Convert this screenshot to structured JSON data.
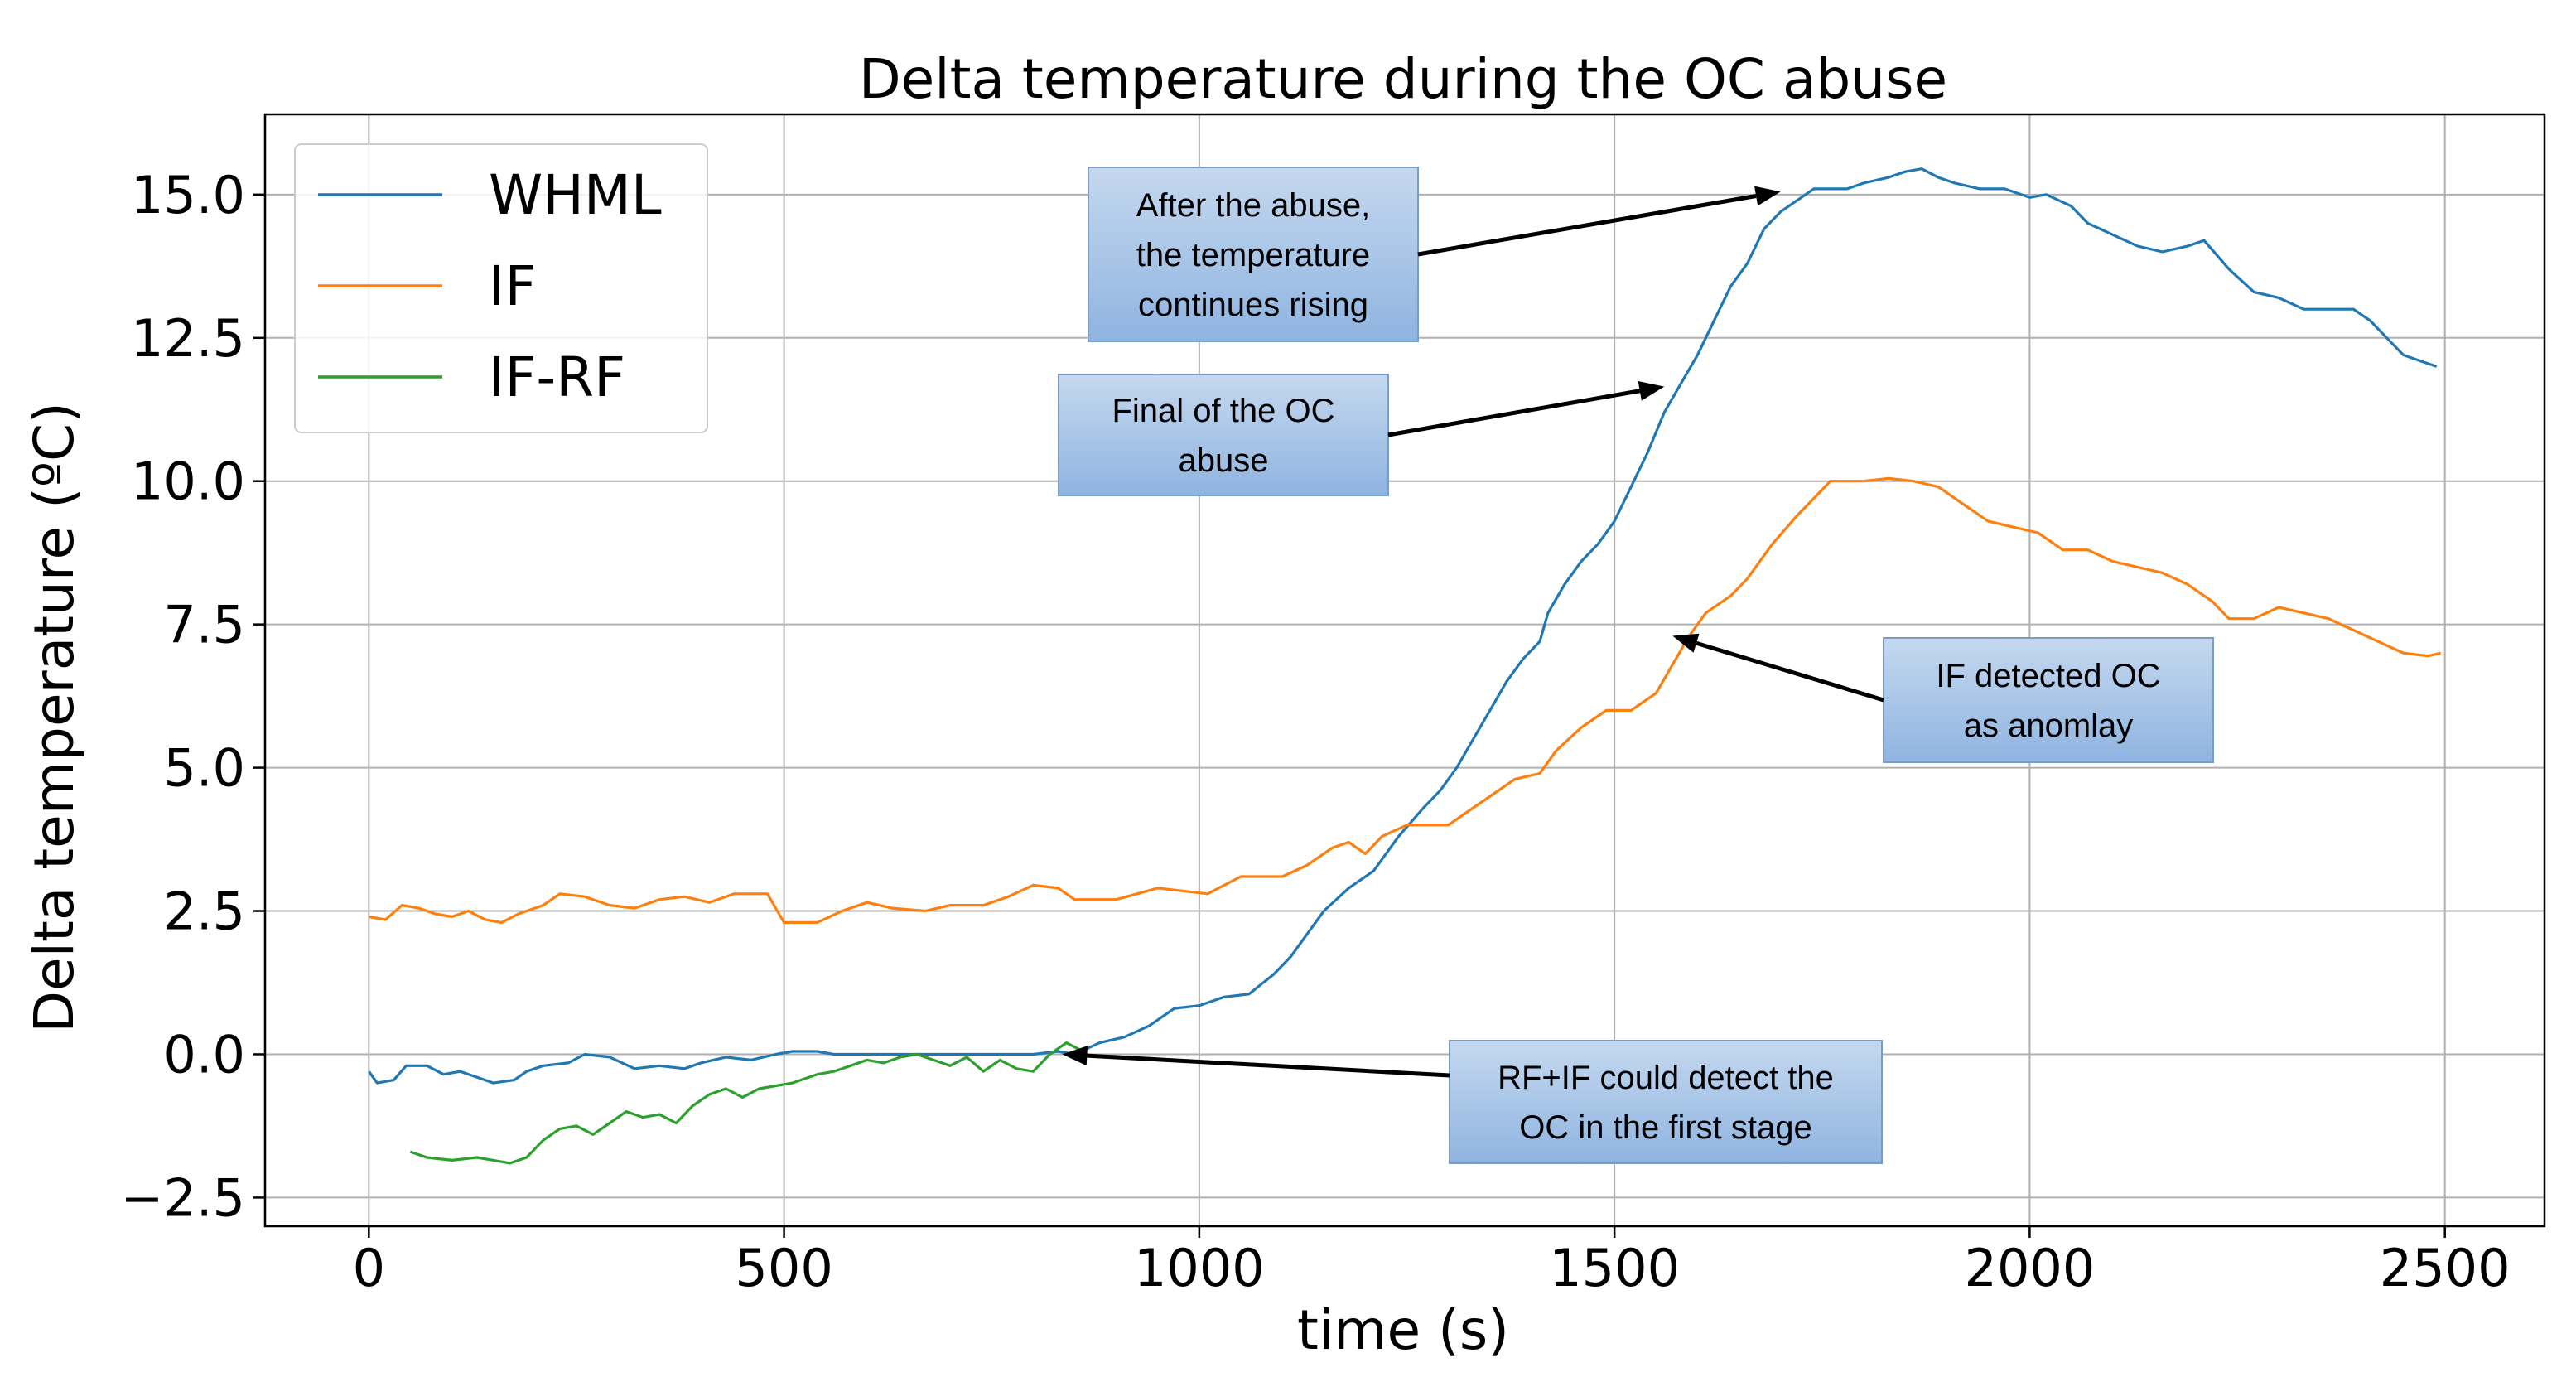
{
  "chart_data": {
    "type": "line",
    "title": "Delta temperature during the OC abuse",
    "xlabel": "time (s)",
    "ylabel": "Delta temperature (ºC)",
    "xlim": [
      -125,
      2620
    ],
    "ylim": [
      -3.0,
      16.4
    ],
    "xticks": [
      0,
      500,
      1000,
      1500,
      2000,
      2500
    ],
    "yticks": [
      -2.5,
      0.0,
      2.5,
      5.0,
      7.5,
      10.0,
      12.5,
      15.0
    ],
    "xtick_labels": [
      "0",
      "500",
      "1000",
      "1500",
      "2000",
      "2500"
    ],
    "ytick_labels": [
      "−2.5",
      "0.0",
      "2.5",
      "5.0",
      "7.5",
      "10.0",
      "12.5",
      "15.0"
    ],
    "grid": true,
    "legend_position": "top-left",
    "series": [
      {
        "name": "WHML",
        "color": "#1f77b4",
        "points": [
          [
            0,
            -0.3
          ],
          [
            10,
            -0.5
          ],
          [
            30,
            -0.45
          ],
          [
            45,
            -0.2
          ],
          [
            70,
            -0.2
          ],
          [
            90,
            -0.35
          ],
          [
            110,
            -0.3
          ],
          [
            130,
            -0.4
          ],
          [
            150,
            -0.5
          ],
          [
            175,
            -0.45
          ],
          [
            190,
            -0.3
          ],
          [
            210,
            -0.2
          ],
          [
            240,
            -0.15
          ],
          [
            260,
            0.0
          ],
          [
            290,
            -0.05
          ],
          [
            320,
            -0.25
          ],
          [
            350,
            -0.2
          ],
          [
            380,
            -0.25
          ],
          [
            400,
            -0.15
          ],
          [
            430,
            -0.05
          ],
          [
            460,
            -0.1
          ],
          [
            490,
            0.0
          ],
          [
            510,
            0.05
          ],
          [
            540,
            0.05
          ],
          [
            560,
            0.0
          ],
          [
            600,
            0.0
          ],
          [
            650,
            0.0
          ],
          [
            700,
            0.0
          ],
          [
            750,
            0.0
          ],
          [
            800,
            0.0
          ],
          [
            830,
            0.05
          ],
          [
            850,
            0.0
          ],
          [
            880,
            0.2
          ],
          [
            910,
            0.3
          ],
          [
            940,
            0.5
          ],
          [
            970,
            0.8
          ],
          [
            1000,
            0.85
          ],
          [
            1030,
            1.0
          ],
          [
            1060,
            1.05
          ],
          [
            1090,
            1.4
          ],
          [
            1110,
            1.7
          ],
          [
            1130,
            2.1
          ],
          [
            1150,
            2.5
          ],
          [
            1180,
            2.9
          ],
          [
            1210,
            3.2
          ],
          [
            1240,
            3.8
          ],
          [
            1270,
            4.3
          ],
          [
            1290,
            4.6
          ],
          [
            1310,
            5.0
          ],
          [
            1330,
            5.5
          ],
          [
            1350,
            6.0
          ],
          [
            1370,
            6.5
          ],
          [
            1390,
            6.9
          ],
          [
            1410,
            7.2
          ],
          [
            1420,
            7.7
          ],
          [
            1440,
            8.2
          ],
          [
            1460,
            8.6
          ],
          [
            1480,
            8.9
          ],
          [
            1500,
            9.3
          ],
          [
            1520,
            9.9
          ],
          [
            1540,
            10.5
          ],
          [
            1560,
            11.2
          ],
          [
            1580,
            11.7
          ],
          [
            1600,
            12.2
          ],
          [
            1620,
            12.8
          ],
          [
            1640,
            13.4
          ],
          [
            1660,
            13.8
          ],
          [
            1680,
            14.4
          ],
          [
            1700,
            14.7
          ],
          [
            1720,
            14.9
          ],
          [
            1740,
            15.1
          ],
          [
            1780,
            15.1
          ],
          [
            1800,
            15.2
          ],
          [
            1830,
            15.3
          ],
          [
            1850,
            15.4
          ],
          [
            1870,
            15.45
          ],
          [
            1890,
            15.3
          ],
          [
            1910,
            15.2
          ],
          [
            1940,
            15.1
          ],
          [
            1970,
            15.1
          ],
          [
            2000,
            14.95
          ],
          [
            2020,
            15.0
          ],
          [
            2050,
            14.8
          ],
          [
            2070,
            14.5
          ],
          [
            2100,
            14.3
          ],
          [
            2130,
            14.1
          ],
          [
            2160,
            14.0
          ],
          [
            2190,
            14.1
          ],
          [
            2210,
            14.2
          ],
          [
            2240,
            13.7
          ],
          [
            2270,
            13.3
          ],
          [
            2300,
            13.2
          ],
          [
            2330,
            13.0
          ],
          [
            2360,
            13.0
          ],
          [
            2390,
            13.0
          ],
          [
            2410,
            12.8
          ],
          [
            2430,
            12.5
          ],
          [
            2450,
            12.2
          ],
          [
            2470,
            12.1
          ],
          [
            2490,
            12.0
          ]
        ]
      },
      {
        "name": "IF",
        "color": "#ff7f0e",
        "points": [
          [
            0,
            2.4
          ],
          [
            20,
            2.35
          ],
          [
            40,
            2.6
          ],
          [
            60,
            2.55
          ],
          [
            80,
            2.45
          ],
          [
            100,
            2.4
          ],
          [
            120,
            2.5
          ],
          [
            140,
            2.35
          ],
          [
            160,
            2.3
          ],
          [
            180,
            2.45
          ],
          [
            210,
            2.6
          ],
          [
            230,
            2.8
          ],
          [
            260,
            2.75
          ],
          [
            290,
            2.6
          ],
          [
            320,
            2.55
          ],
          [
            350,
            2.7
          ],
          [
            380,
            2.75
          ],
          [
            410,
            2.65
          ],
          [
            440,
            2.8
          ],
          [
            480,
            2.8
          ],
          [
            500,
            2.3
          ],
          [
            540,
            2.3
          ],
          [
            570,
            2.5
          ],
          [
            600,
            2.65
          ],
          [
            630,
            2.55
          ],
          [
            670,
            2.5
          ],
          [
            700,
            2.6
          ],
          [
            740,
            2.6
          ],
          [
            770,
            2.75
          ],
          [
            800,
            2.95
          ],
          [
            830,
            2.9
          ],
          [
            850,
            2.7
          ],
          [
            900,
            2.7
          ],
          [
            950,
            2.9
          ],
          [
            980,
            2.85
          ],
          [
            1010,
            2.8
          ],
          [
            1050,
            3.1
          ],
          [
            1100,
            3.1
          ],
          [
            1130,
            3.3
          ],
          [
            1160,
            3.6
          ],
          [
            1180,
            3.7
          ],
          [
            1200,
            3.5
          ],
          [
            1220,
            3.8
          ],
          [
            1250,
            4.0
          ],
          [
            1300,
            4.0
          ],
          [
            1330,
            4.3
          ],
          [
            1360,
            4.6
          ],
          [
            1380,
            4.8
          ],
          [
            1410,
            4.9
          ],
          [
            1430,
            5.3
          ],
          [
            1460,
            5.7
          ],
          [
            1490,
            6.0
          ],
          [
            1520,
            6.0
          ],
          [
            1550,
            6.3
          ],
          [
            1570,
            6.8
          ],
          [
            1590,
            7.3
          ],
          [
            1610,
            7.7
          ],
          [
            1640,
            8.0
          ],
          [
            1660,
            8.3
          ],
          [
            1690,
            8.9
          ],
          [
            1720,
            9.4
          ],
          [
            1740,
            9.7
          ],
          [
            1760,
            10.0
          ],
          [
            1800,
            10.0
          ],
          [
            1830,
            10.05
          ],
          [
            1860,
            10.0
          ],
          [
            1890,
            9.9
          ],
          [
            1920,
            9.6
          ],
          [
            1950,
            9.3
          ],
          [
            1980,
            9.2
          ],
          [
            2010,
            9.1
          ],
          [
            2040,
            8.8
          ],
          [
            2070,
            8.8
          ],
          [
            2100,
            8.6
          ],
          [
            2130,
            8.5
          ],
          [
            2160,
            8.4
          ],
          [
            2190,
            8.2
          ],
          [
            2220,
            7.9
          ],
          [
            2240,
            7.6
          ],
          [
            2270,
            7.6
          ],
          [
            2300,
            7.8
          ],
          [
            2330,
            7.7
          ],
          [
            2360,
            7.6
          ],
          [
            2390,
            7.4
          ],
          [
            2420,
            7.2
          ],
          [
            2450,
            7.0
          ],
          [
            2480,
            6.95
          ],
          [
            2495,
            7.0
          ]
        ]
      },
      {
        "name": "IF-RF",
        "color": "#2ca02c",
        "points": [
          [
            50,
            -1.7
          ],
          [
            70,
            -1.8
          ],
          [
            100,
            -1.85
          ],
          [
            130,
            -1.8
          ],
          [
            150,
            -1.85
          ],
          [
            170,
            -1.9
          ],
          [
            190,
            -1.8
          ],
          [
            210,
            -1.5
          ],
          [
            230,
            -1.3
          ],
          [
            250,
            -1.25
          ],
          [
            270,
            -1.4
          ],
          [
            290,
            -1.2
          ],
          [
            310,
            -1.0
          ],
          [
            330,
            -1.1
          ],
          [
            350,
            -1.05
          ],
          [
            370,
            -1.2
          ],
          [
            390,
            -0.9
          ],
          [
            410,
            -0.7
          ],
          [
            430,
            -0.6
          ],
          [
            450,
            -0.75
          ],
          [
            470,
            -0.6
          ],
          [
            490,
            -0.55
          ],
          [
            510,
            -0.5
          ],
          [
            540,
            -0.35
          ],
          [
            560,
            -0.3
          ],
          [
            580,
            -0.2
          ],
          [
            600,
            -0.1
          ],
          [
            620,
            -0.15
          ],
          [
            640,
            -0.05
          ],
          [
            660,
            0.0
          ],
          [
            680,
            -0.1
          ],
          [
            700,
            -0.2
          ],
          [
            720,
            -0.05
          ],
          [
            740,
            -0.3
          ],
          [
            760,
            -0.1
          ],
          [
            780,
            -0.25
          ],
          [
            800,
            -0.3
          ],
          [
            820,
            0.0
          ],
          [
            840,
            0.2
          ],
          [
            860,
            0.05
          ]
        ]
      }
    ],
    "annotations": [
      {
        "lines": [
          "After the abuse,",
          "the temperature",
          "continues rising"
        ],
        "target": [
          1700,
          15.05
        ]
      },
      {
        "lines": [
          "Final of the OC",
          "abuse"
        ],
        "target": [
          1560,
          11.65
        ]
      },
      {
        "lines": [
          "IF detected OC",
          "as anomlay"
        ],
        "target": [
          1570,
          7.3
        ]
      },
      {
        "lines": [
          "RF+IF could detect the",
          "OC in the first stage"
        ],
        "target": [
          835,
          0.0
        ]
      }
    ]
  }
}
